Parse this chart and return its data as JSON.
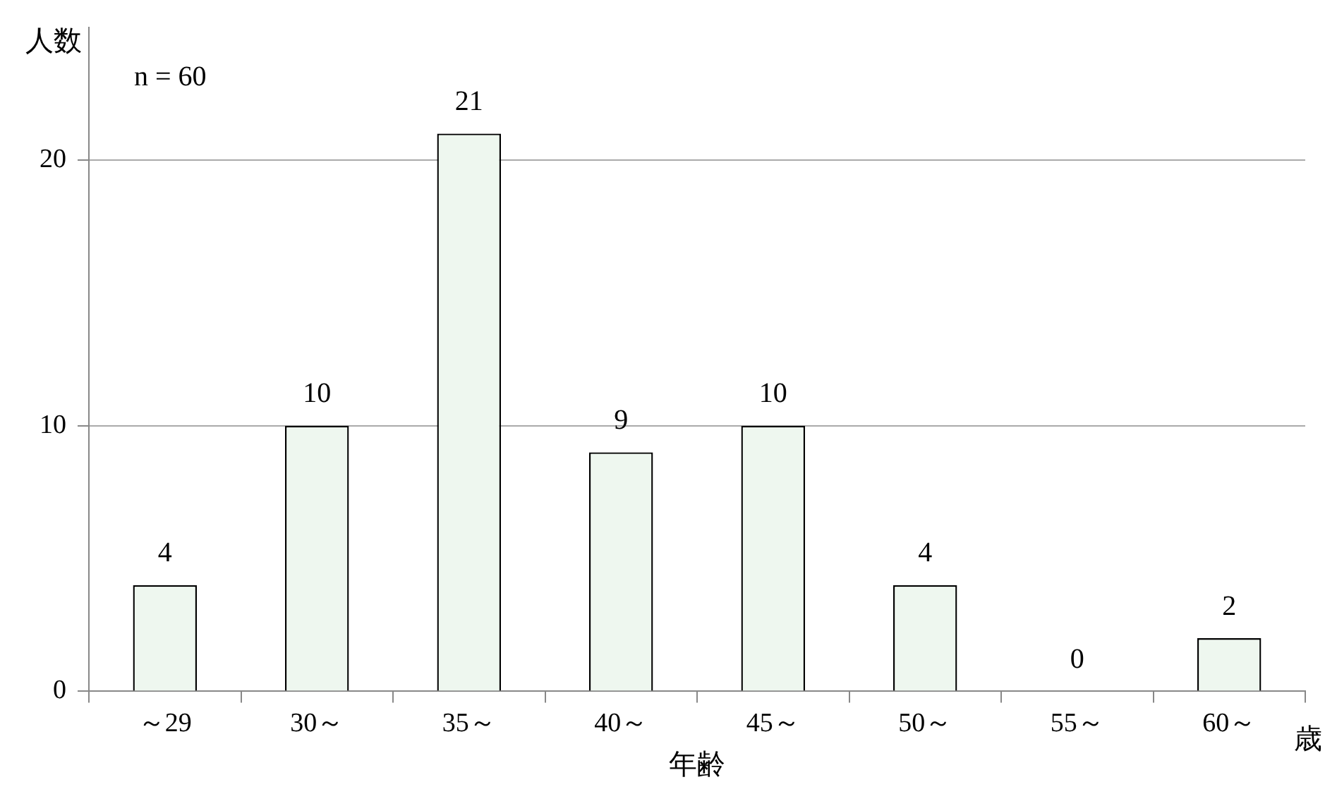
{
  "chart_data": {
    "type": "bar",
    "ylabel": "人数",
    "xlabel": "年齢",
    "annotations": [
      "n = 60",
      "歳"
    ],
    "categories": [
      "～29",
      "30～",
      "35～",
      "40～",
      "45～",
      "50～",
      "55～",
      "60～"
    ],
    "values": [
      4,
      10,
      21,
      9,
      10,
      4,
      0,
      2
    ],
    "color": "#eef7ef",
    "ylim": [
      0,
      25
    ],
    "yticks": [
      0,
      10,
      20
    ],
    "grid": "y",
    "data_labels": true,
    "legend": false
  }
}
